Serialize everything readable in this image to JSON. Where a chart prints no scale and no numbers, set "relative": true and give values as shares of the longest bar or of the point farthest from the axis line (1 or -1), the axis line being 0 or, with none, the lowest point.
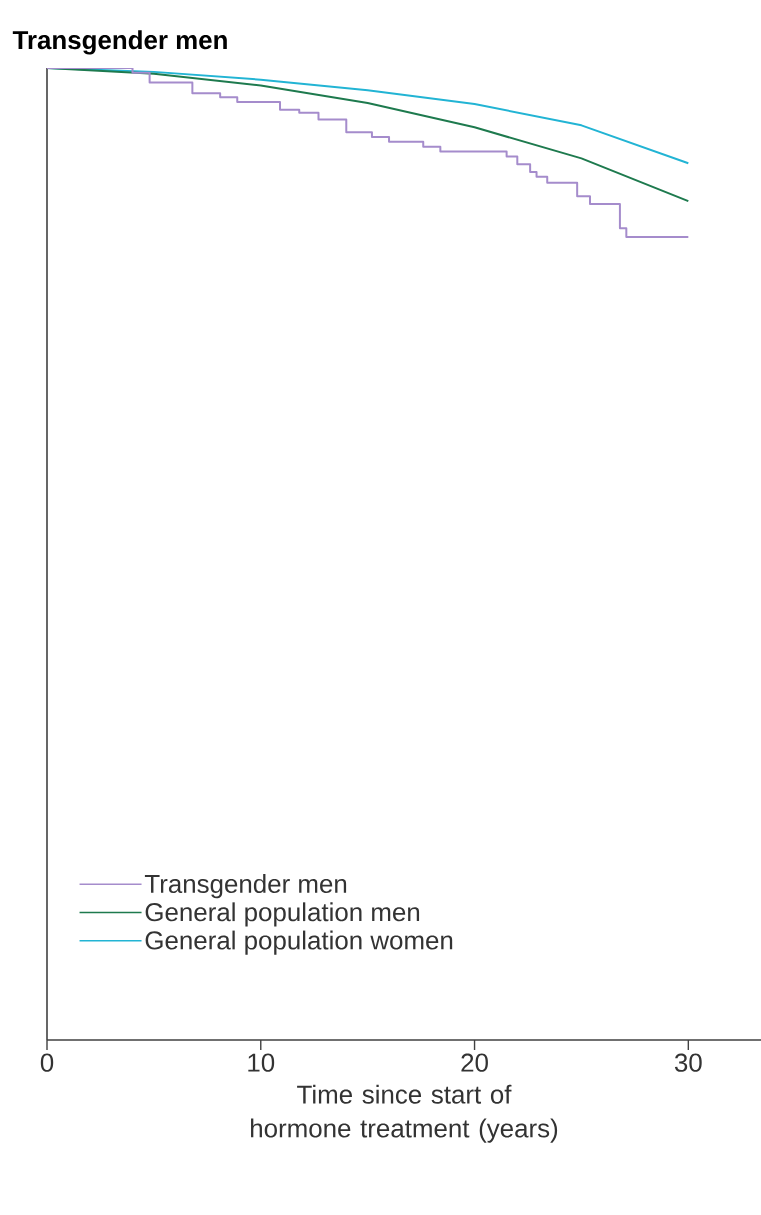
{
  "chart_data": {
    "type": "line",
    "title": "Transgender men",
    "xlabel": "Time since start of hormone treatment (years)",
    "relative": true,
    "xlim": [
      0,
      33.4
    ],
    "xticks": [
      0,
      10,
      20,
      30
    ],
    "legend": "bottom left",
    "series": [
      {
        "name": "Transgender men",
        "type": "step",
        "color": "#a58ccc",
        "x": [
          0,
          4.0,
          4.8,
          6.8,
          8.1,
          8.9,
          10.9,
          11.8,
          12.7,
          14.0,
          15.2,
          16.0,
          17.6,
          18.4,
          21.5,
          22.0,
          22.6,
          22.9,
          23.4,
          24.8,
          25.4,
          26.8,
          27.1,
          30.0
        ],
        "values": [
          1.0,
          0.995,
          0.985,
          0.974,
          0.97,
          0.965,
          0.957,
          0.954,
          0.947,
          0.934,
          0.929,
          0.924,
          0.919,
          0.914,
          0.909,
          0.901,
          0.893,
          0.888,
          0.882,
          0.868,
          0.86,
          0.835,
          0.826,
          0.826
        ]
      },
      {
        "name": "General population men",
        "color": "#1e7a4e",
        "x": [
          0,
          5,
          10,
          15,
          20,
          25,
          30
        ],
        "values": [
          1.0,
          0.994,
          0.982,
          0.964,
          0.939,
          0.907,
          0.863
        ]
      },
      {
        "name": "General population women",
        "color": "#22b4d4",
        "x": [
          0,
          5,
          10,
          15,
          20,
          25,
          30
        ],
        "values": [
          1.0,
          0.996,
          0.988,
          0.977,
          0.963,
          0.941,
          0.902
        ]
      }
    ]
  }
}
